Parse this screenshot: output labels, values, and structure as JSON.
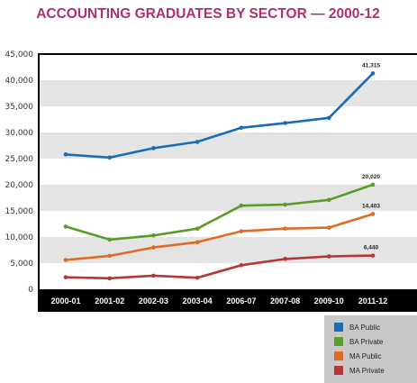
{
  "colors": {
    "title": "#b0306d",
    "frame": "#000000",
    "band": "#e4e4e4",
    "legend_bg": "#c8c8c8"
  },
  "chart_data": {
    "type": "line",
    "title": "ACCOUNTING GRADUATES BY SECTOR — 2000-12",
    "categories": [
      "2000-01",
      "2001-02",
      "2002-03",
      "2003-04",
      "2006-07",
      "2007-08",
      "2009-10",
      "2011-12"
    ],
    "ylim": [
      0,
      45000
    ],
    "yticks": [
      "0",
      "5,000",
      "10,000",
      "15,000",
      "20,000",
      "25,000",
      "30,000",
      "35,000",
      "40,000",
      "45,000"
    ],
    "grid": "alternating horizontal bands",
    "legend_position": "bottom-right",
    "series": [
      {
        "name": "BA Public",
        "color": "#1a6db5",
        "values": [
          25800,
          25200,
          27000,
          28200,
          30900,
          31800,
          32800,
          41315
        ],
        "end_label": "41,315"
      },
      {
        "name": "BA Private",
        "color": "#5a9c27",
        "values": [
          12000,
          9500,
          10300,
          11600,
          16000,
          16200,
          17100,
          20020
        ],
        "end_label": "20,020"
      },
      {
        "name": "MA Public",
        "color": "#de6c25",
        "values": [
          5600,
          6400,
          8000,
          9000,
          11100,
          11600,
          11800,
          14403
        ],
        "end_label": "14,403"
      },
      {
        "name": "MA Private",
        "color": "#b43636",
        "values": [
          2300,
          2100,
          2600,
          2200,
          4600,
          5800,
          6300,
          6440
        ],
        "end_label": "6,440"
      }
    ]
  }
}
